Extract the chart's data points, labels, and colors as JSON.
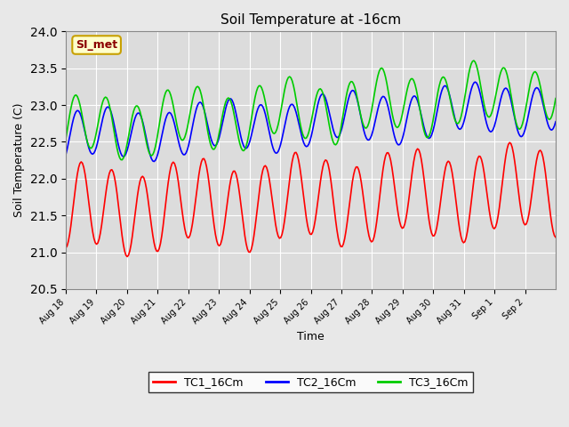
{
  "title": "Soil Temperature at -16cm",
  "xlabel": "Time",
  "ylabel": "Soil Temperature (C)",
  "ylim": [
    20.5,
    24.0
  ],
  "n_days": 16,
  "x_tick_labels": [
    "Aug 18",
    "Aug 19",
    "Aug 20",
    "Aug 21",
    "Aug 22",
    "Aug 23",
    "Aug 24",
    "Aug 25",
    "Aug 26",
    "Aug 27",
    "Aug 28",
    "Aug 29",
    "Aug 30",
    "Aug 31",
    "Sep 1",
    "Sep 2"
  ],
  "background_color": "#e8e8e8",
  "plot_bg_color": "#dcdcdc",
  "annotation_text": "SI_met",
  "annotation_color": "#8b0000",
  "annotation_bg": "#ffffcc",
  "annotation_border": "#c8a000",
  "tc1_color": "#ff0000",
  "tc2_color": "#0000ff",
  "tc3_color": "#00cc00",
  "tc1_label": "TC1_16Cm",
  "tc2_label": "TC2_16Cm",
  "tc3_label": "TC3_16Cm"
}
